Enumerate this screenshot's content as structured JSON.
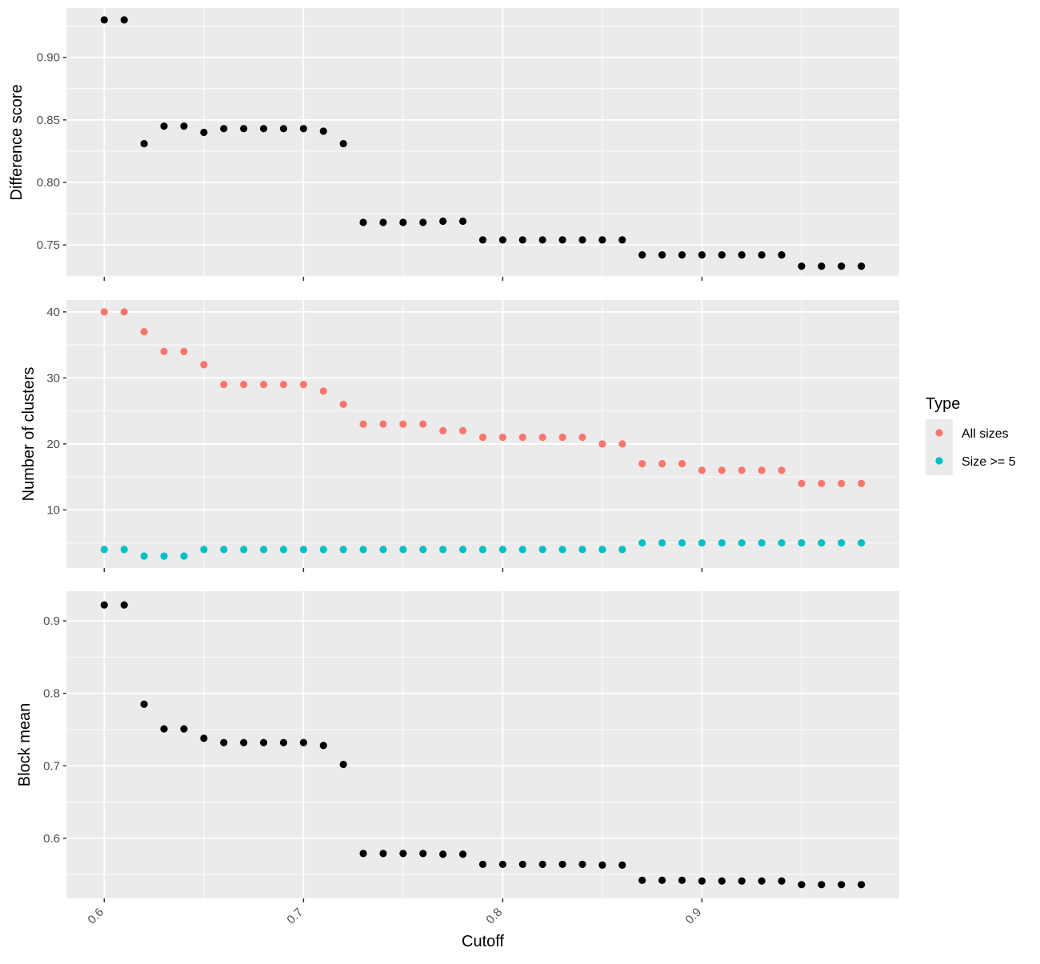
{
  "chart_data": [
    {
      "type": "scatter",
      "xlabel": "",
      "ylabel": "Difference score",
      "xlim": [
        0.581,
        0.999
      ],
      "ylim": [
        0.7245,
        0.9395
      ],
      "x_ticks": [
        0.6,
        0.7,
        0.8,
        0.9
      ],
      "y_ticks": [
        0.75,
        0.8,
        0.85,
        0.9
      ],
      "y_tick_labels": [
        "0.75",
        "0.80",
        "0.85",
        "0.90"
      ],
      "grid": true,
      "series": [
        {
          "color": "#000000",
          "x": [
            0.6,
            0.61,
            0.62,
            0.63,
            0.64,
            0.65,
            0.66,
            0.67,
            0.68,
            0.69,
            0.7,
            0.71,
            0.72,
            0.73,
            0.74,
            0.75,
            0.76,
            0.77,
            0.78,
            0.79,
            0.8,
            0.81,
            0.82,
            0.83,
            0.84,
            0.85,
            0.86,
            0.87,
            0.88,
            0.89,
            0.9,
            0.91,
            0.92,
            0.93,
            0.94,
            0.95,
            0.96,
            0.97,
            0.98
          ],
          "y": [
            0.93,
            0.93,
            0.831,
            0.845,
            0.845,
            0.84,
            0.843,
            0.843,
            0.843,
            0.843,
            0.843,
            0.841,
            0.831,
            0.768,
            0.768,
            0.768,
            0.768,
            0.769,
            0.769,
            0.754,
            0.754,
            0.754,
            0.754,
            0.754,
            0.754,
            0.754,
            0.754,
            0.742,
            0.742,
            0.742,
            0.742,
            0.742,
            0.742,
            0.742,
            0.742,
            0.733,
            0.733,
            0.733,
            0.733
          ]
        }
      ]
    },
    {
      "type": "scatter",
      "xlabel": "",
      "ylabel": "Number of clusters",
      "xlim": [
        0.581,
        0.999
      ],
      "ylim": [
        1.2,
        41.8
      ],
      "x_ticks": [
        0.6,
        0.7,
        0.8,
        0.9
      ],
      "y_ticks": [
        10,
        20,
        30,
        40
      ],
      "y_tick_labels": [
        "10",
        "20",
        "30",
        "40"
      ],
      "grid": true,
      "legend": {
        "title": "Type",
        "position": "right",
        "entries": [
          "All sizes",
          "Size >= 5"
        ]
      },
      "series": [
        {
          "name": "All sizes",
          "color": "#F8766D",
          "x": [
            0.6,
            0.61,
            0.62,
            0.63,
            0.64,
            0.65,
            0.66,
            0.67,
            0.68,
            0.69,
            0.7,
            0.71,
            0.72,
            0.73,
            0.74,
            0.75,
            0.76,
            0.77,
            0.78,
            0.79,
            0.8,
            0.81,
            0.82,
            0.83,
            0.84,
            0.85,
            0.86,
            0.87,
            0.88,
            0.89,
            0.9,
            0.91,
            0.92,
            0.93,
            0.94,
            0.95,
            0.96,
            0.97,
            0.98
          ],
          "y": [
            40,
            40,
            37,
            34,
            34,
            32,
            29,
            29,
            29,
            29,
            29,
            28,
            26,
            23,
            23,
            23,
            23,
            22,
            22,
            21,
            21,
            21,
            21,
            21,
            21,
            20,
            20,
            17,
            17,
            17,
            16,
            16,
            16,
            16,
            16,
            14,
            14,
            14,
            14
          ]
        },
        {
          "name": "Size >= 5",
          "color": "#00BFC4",
          "x": [
            0.6,
            0.61,
            0.62,
            0.63,
            0.64,
            0.65,
            0.66,
            0.67,
            0.68,
            0.69,
            0.7,
            0.71,
            0.72,
            0.73,
            0.74,
            0.75,
            0.76,
            0.77,
            0.78,
            0.79,
            0.8,
            0.81,
            0.82,
            0.83,
            0.84,
            0.85,
            0.86,
            0.87,
            0.88,
            0.89,
            0.9,
            0.91,
            0.92,
            0.93,
            0.94,
            0.95,
            0.96,
            0.97,
            0.98
          ],
          "y": [
            4,
            4,
            3,
            3,
            3,
            4,
            4,
            4,
            4,
            4,
            4,
            4,
            4,
            4,
            4,
            4,
            4,
            4,
            4,
            4,
            4,
            4,
            4,
            4,
            4,
            4,
            4,
            5,
            5,
            5,
            5,
            5,
            5,
            5,
            5,
            5,
            5,
            5,
            5
          ]
        }
      ]
    },
    {
      "type": "scatter",
      "xlabel": "Cutoff",
      "ylabel": "Block mean",
      "xlim": [
        0.581,
        0.999
      ],
      "ylim": [
        0.517,
        0.941
      ],
      "x_ticks": [
        0.6,
        0.7,
        0.8,
        0.9
      ],
      "x_tick_labels": [
        "0.6",
        "0.7",
        "0.8",
        "0.9"
      ],
      "y_ticks": [
        0.6,
        0.7,
        0.8,
        0.9
      ],
      "y_tick_labels": [
        "0.6",
        "0.7",
        "0.8",
        "0.9"
      ],
      "grid": true,
      "series": [
        {
          "color": "#000000",
          "x": [
            0.6,
            0.61,
            0.62,
            0.63,
            0.64,
            0.65,
            0.66,
            0.67,
            0.68,
            0.69,
            0.7,
            0.71,
            0.72,
            0.73,
            0.74,
            0.75,
            0.76,
            0.77,
            0.78,
            0.79,
            0.8,
            0.81,
            0.82,
            0.83,
            0.84,
            0.85,
            0.86,
            0.87,
            0.88,
            0.89,
            0.9,
            0.91,
            0.92,
            0.93,
            0.94,
            0.95,
            0.96,
            0.97,
            0.98
          ],
          "y": [
            0.922,
            0.922,
            0.785,
            0.751,
            0.751,
            0.738,
            0.732,
            0.732,
            0.732,
            0.732,
            0.732,
            0.728,
            0.702,
            0.579,
            0.579,
            0.579,
            0.579,
            0.578,
            0.578,
            0.564,
            0.564,
            0.564,
            0.564,
            0.564,
            0.564,
            0.563,
            0.563,
            0.542,
            0.542,
            0.542,
            0.541,
            0.541,
            0.541,
            0.541,
            0.541,
            0.536,
            0.536,
            0.536,
            0.536
          ]
        }
      ]
    }
  ]
}
